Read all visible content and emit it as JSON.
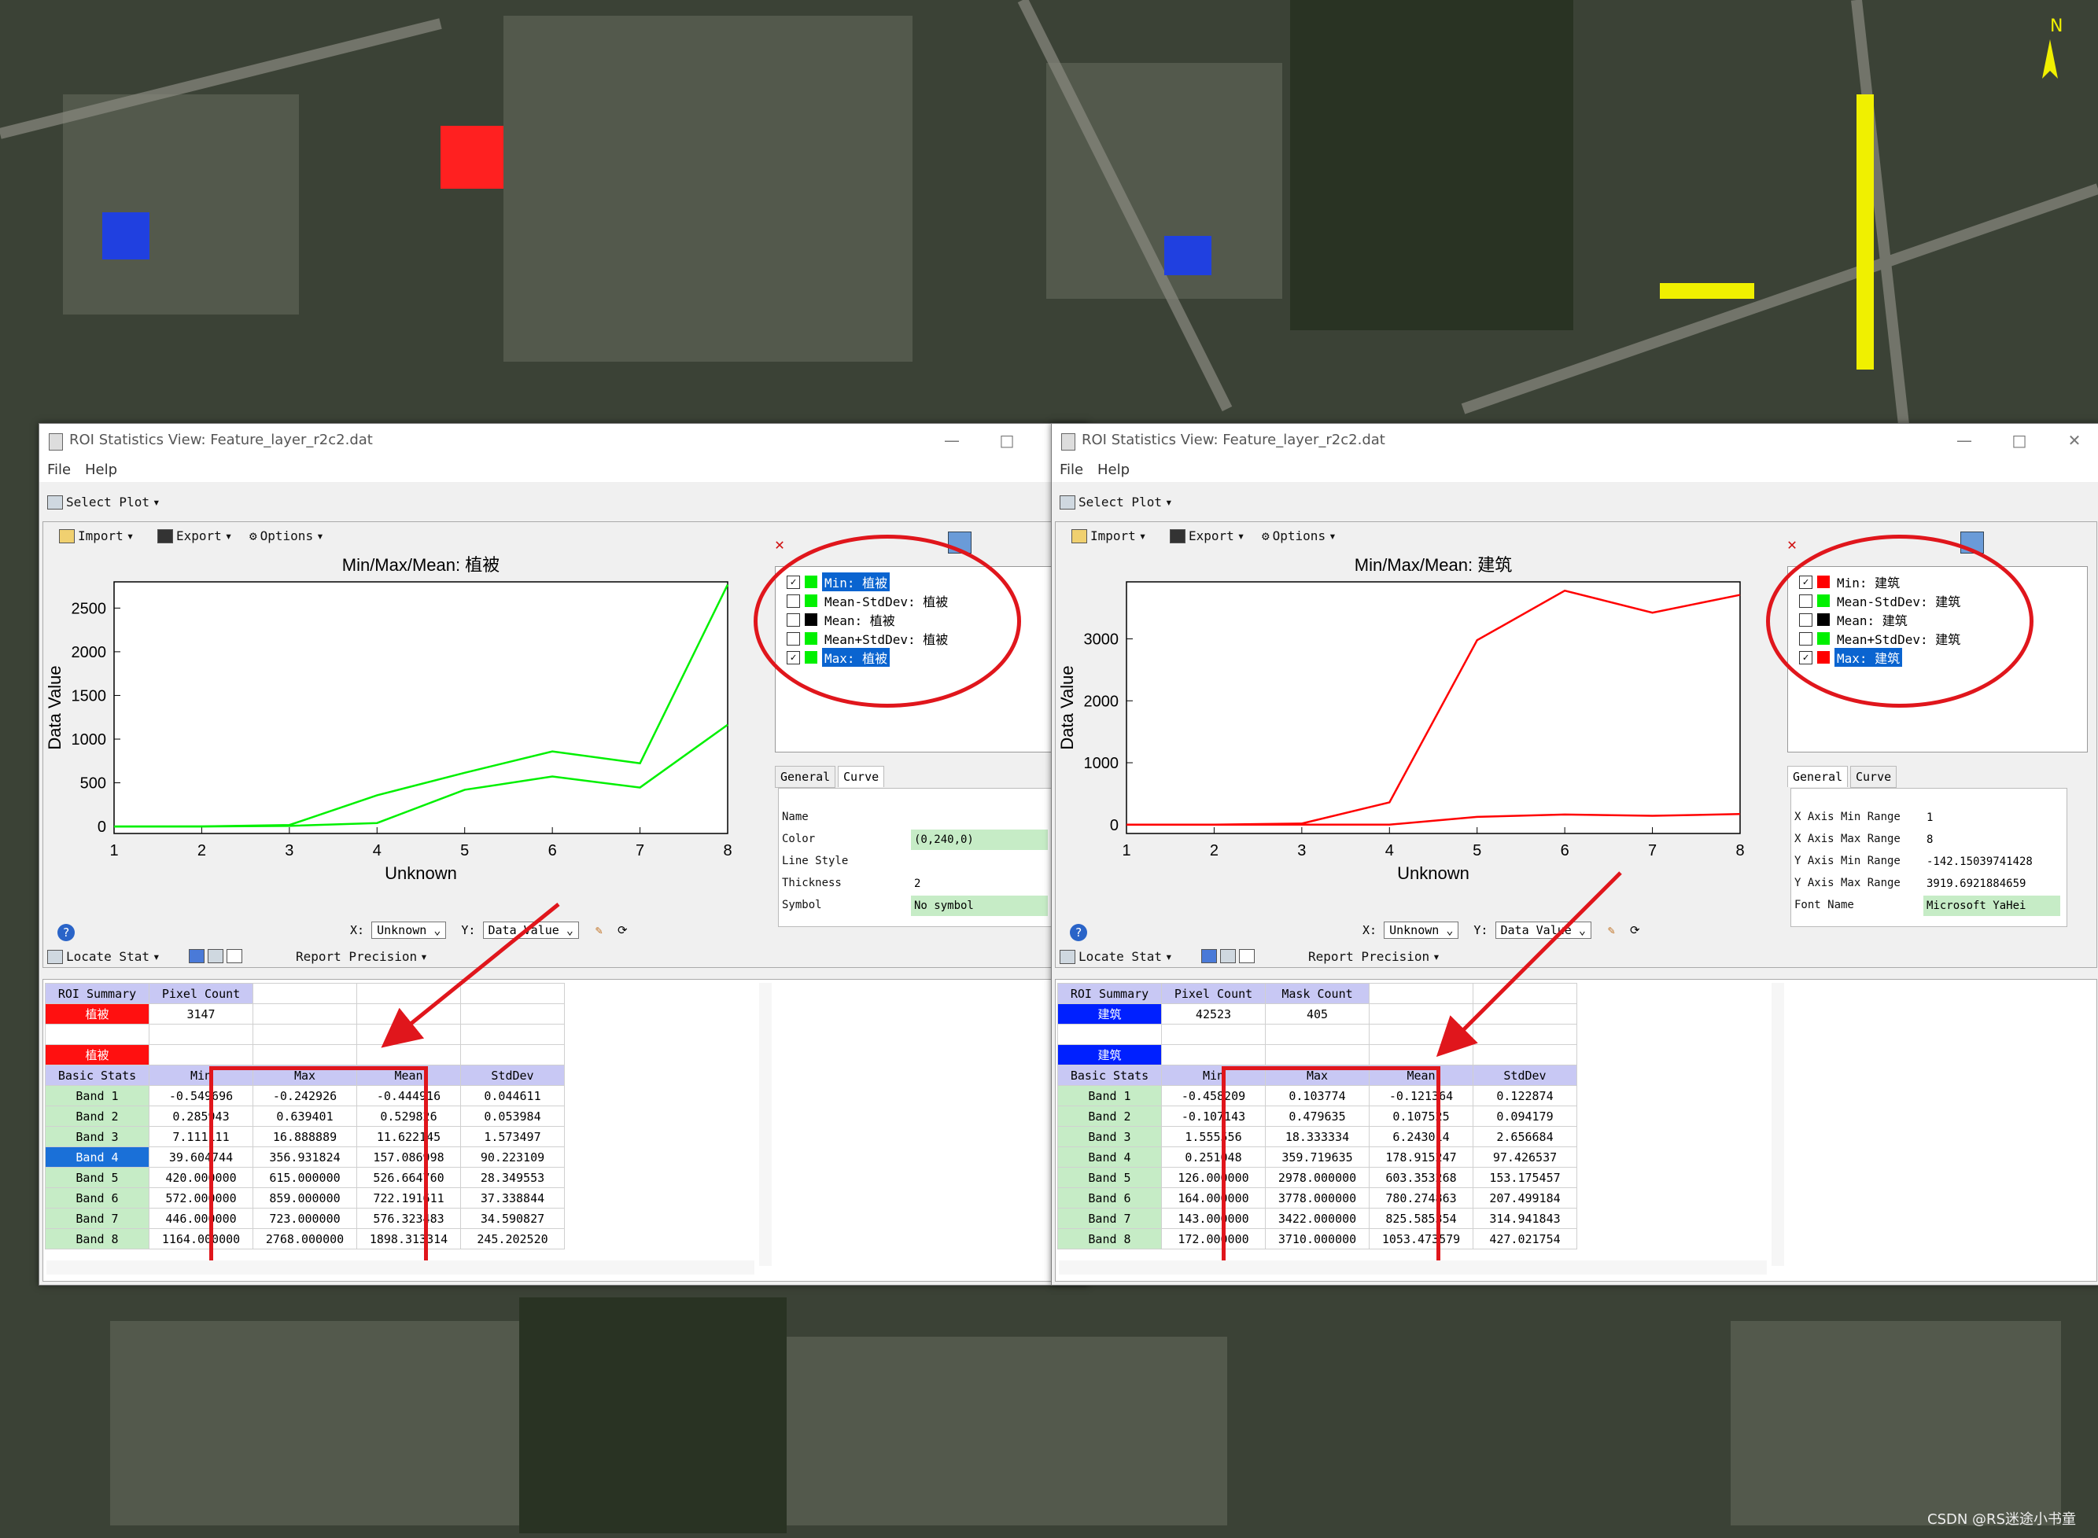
{
  "watermark": "CSDN @RS迷途小书童",
  "compass_label": "N",
  "colors": {
    "green": "#00f000",
    "red": "#ff0000",
    "blue": "#0020ff",
    "selection": "#0a64d0",
    "annotation": "#e0161c"
  },
  "windows": [
    {
      "title": "ROI Statistics View: Feature_layer_r2c2.dat",
      "menu": [
        "File",
        "Help"
      ],
      "select_plot": "Select Plot",
      "import": "Import",
      "export": "Export",
      "options": "Options",
      "x_label": "X:",
      "x_combo": "Unknown",
      "y_label": "Y:",
      "y_combo": "Data Value",
      "legend": [
        {
          "checked": true,
          "color": "#00f000",
          "label": "Min: 植被",
          "selected": true
        },
        {
          "checked": false,
          "color": "#00f000",
          "label": "Mean-StdDev: 植被",
          "selected": false
        },
        {
          "checked": false,
          "color": "#000000",
          "label": "Mean: 植被",
          "selected": false
        },
        {
          "checked": false,
          "color": "#00f000",
          "label": "Mean+StdDev: 植被",
          "selected": false
        },
        {
          "checked": true,
          "color": "#00f000",
          "label": "Max: 植被",
          "selected": true
        }
      ],
      "tabs": [
        "General",
        "Curve"
      ],
      "active_tab": 1,
      "props": [
        {
          "k": "Name",
          "v": ""
        },
        {
          "k": "Color",
          "v": "(0,240,0)"
        },
        {
          "k": "Line Style",
          "v": ""
        },
        {
          "k": "Thickness",
          "v": "2"
        },
        {
          "k": "Symbol",
          "v": "No symbol"
        }
      ],
      "locate_stat": "Locate Stat",
      "report_precision": "Report Precision",
      "summary_header": [
        "ROI Summary",
        "Pixel Count",
        "",
        "",
        ""
      ],
      "summary_row": [
        "植被",
        "3147",
        "",
        "",
        ""
      ],
      "roi_row": [
        "植被",
        "",
        "",
        "",
        ""
      ],
      "roi_color": "red",
      "stats_header": [
        "Basic Stats",
        "Min",
        "Max",
        "Mean",
        "StdDev"
      ],
      "bands": [
        [
          "Band 1",
          "-0.549696",
          "-0.242926",
          "-0.444916",
          "0.044611"
        ],
        [
          "Band 2",
          "0.285943",
          "0.639401",
          "0.529826",
          "0.053984"
        ],
        [
          "Band 3",
          "7.111111",
          "16.888889",
          "11.622145",
          "1.573497"
        ],
        [
          "Band 4",
          "39.604744",
          "356.931824",
          "157.086998",
          "90.223109"
        ],
        [
          "Band 5",
          "420.000000",
          "615.000000",
          "526.664760",
          "28.349553"
        ],
        [
          "Band 6",
          "572.000000",
          "859.000000",
          "722.191611",
          "37.338844"
        ],
        [
          "Band 7",
          "446.000000",
          "723.000000",
          "576.323483",
          "34.590827"
        ],
        [
          "Band 8",
          "1164.000000",
          "2768.000000",
          "1898.313314",
          "245.202520"
        ]
      ],
      "selected_band": 3,
      "chart_data": {
        "type": "line",
        "title": "Min/Max/Mean: 植被",
        "xlabel": "Unknown",
        "ylabel": "Data Value",
        "x": [
          1,
          2,
          3,
          4,
          5,
          6,
          7,
          8
        ],
        "xlim": [
          1,
          8
        ],
        "ylim": [
          -80,
          2800
        ],
        "yticks": [
          0,
          500,
          1000,
          1500,
          2000,
          2500
        ],
        "xticks": [
          1,
          2,
          3,
          4,
          5,
          6,
          7,
          8
        ],
        "series": [
          {
            "name": "Min: 植被",
            "color": "#00f000",
            "values": [
              -0.55,
              0.29,
              7.1,
              39.6,
              420,
              572,
              446,
              1164
            ]
          },
          {
            "name": "Max: 植被",
            "color": "#00f000",
            "values": [
              -0.24,
              0.64,
              16.9,
              356.9,
              615,
              859,
              723,
              2768
            ]
          }
        ]
      }
    },
    {
      "title": "ROI Statistics View: Feature_layer_r2c2.dat",
      "menu": [
        "File",
        "Help"
      ],
      "select_plot": "Select Plot",
      "import": "Import",
      "export": "Export",
      "options": "Options",
      "x_label": "X:",
      "x_combo": "Unknown",
      "y_label": "Y:",
      "y_combo": "Data Value",
      "legend": [
        {
          "checked": true,
          "color": "#ff0000",
          "label": "Min: 建筑",
          "selected": false
        },
        {
          "checked": false,
          "color": "#00f000",
          "label": "Mean-StdDev: 建筑",
          "selected": false
        },
        {
          "checked": false,
          "color": "#000000",
          "label": "Mean: 建筑",
          "selected": false
        },
        {
          "checked": false,
          "color": "#00f000",
          "label": "Mean+StdDev: 建筑",
          "selected": false
        },
        {
          "checked": true,
          "color": "#ff0000",
          "label": "Max: 建筑",
          "selected": true
        }
      ],
      "tabs": [
        "General",
        "Curve"
      ],
      "active_tab": 0,
      "props": [
        {
          "k": "X Axis Min Range",
          "v": "1"
        },
        {
          "k": "X Axis Max Range",
          "v": "8"
        },
        {
          "k": "Y Axis Min Range",
          "v": "-142.15039741428"
        },
        {
          "k": "Y Axis Max Range",
          "v": "3919.6921884659"
        },
        {
          "k": "Font Name",
          "v": "Microsoft YaHei"
        }
      ],
      "locate_stat": "Locate Stat",
      "report_precision": "Report Precision",
      "summary_header": [
        "ROI Summary",
        "Pixel Count",
        "Mask Count",
        "",
        ""
      ],
      "summary_row": [
        "建筑",
        "42523",
        "405",
        "",
        ""
      ],
      "roi_row": [
        "建筑",
        "",
        "",
        "",
        ""
      ],
      "roi_color": "blue",
      "stats_header": [
        "Basic Stats",
        "Min",
        "Max",
        "Mean",
        "StdDev"
      ],
      "bands": [
        [
          "Band 1",
          "-0.458209",
          "0.103774",
          "-0.121364",
          "0.122874"
        ],
        [
          "Band 2",
          "-0.107143",
          "0.479635",
          "0.107525",
          "0.094179"
        ],
        [
          "Band 3",
          "1.555556",
          "18.333334",
          "6.243014",
          "2.656684"
        ],
        [
          "Band 4",
          "0.251048",
          "359.719635",
          "178.915247",
          "97.426537"
        ],
        [
          "Band 5",
          "126.000000",
          "2978.000000",
          "603.353268",
          "153.175457"
        ],
        [
          "Band 6",
          "164.000000",
          "3778.000000",
          "780.274863",
          "207.499184"
        ],
        [
          "Band 7",
          "143.000000",
          "3422.000000",
          "825.585354",
          "314.941843"
        ],
        [
          "Band 8",
          "172.000000",
          "3710.000000",
          "1053.473579",
          "427.021754"
        ]
      ],
      "selected_band": -1,
      "chart_data": {
        "type": "line",
        "title": "Min/Max/Mean: 建筑",
        "xlabel": "Unknown",
        "ylabel": "Data Value",
        "x": [
          1,
          2,
          3,
          4,
          5,
          6,
          7,
          8
        ],
        "xlim": [
          1,
          8
        ],
        "ylim": [
          -142,
          3920
        ],
        "yticks": [
          0,
          1000,
          2000,
          3000
        ],
        "xticks": [
          1,
          2,
          3,
          4,
          5,
          6,
          7,
          8
        ],
        "series": [
          {
            "name": "Min: 建筑",
            "color": "#ff0000",
            "values": [
              -0.46,
              -0.11,
              1.56,
              0.25,
              126,
              164,
              143,
              172
            ]
          },
          {
            "name": "Max: 建筑",
            "color": "#ff0000",
            "values": [
              0.1,
              0.48,
              18.3,
              359.7,
              2978,
              3778,
              3422,
              3710
            ]
          }
        ]
      }
    }
  ]
}
